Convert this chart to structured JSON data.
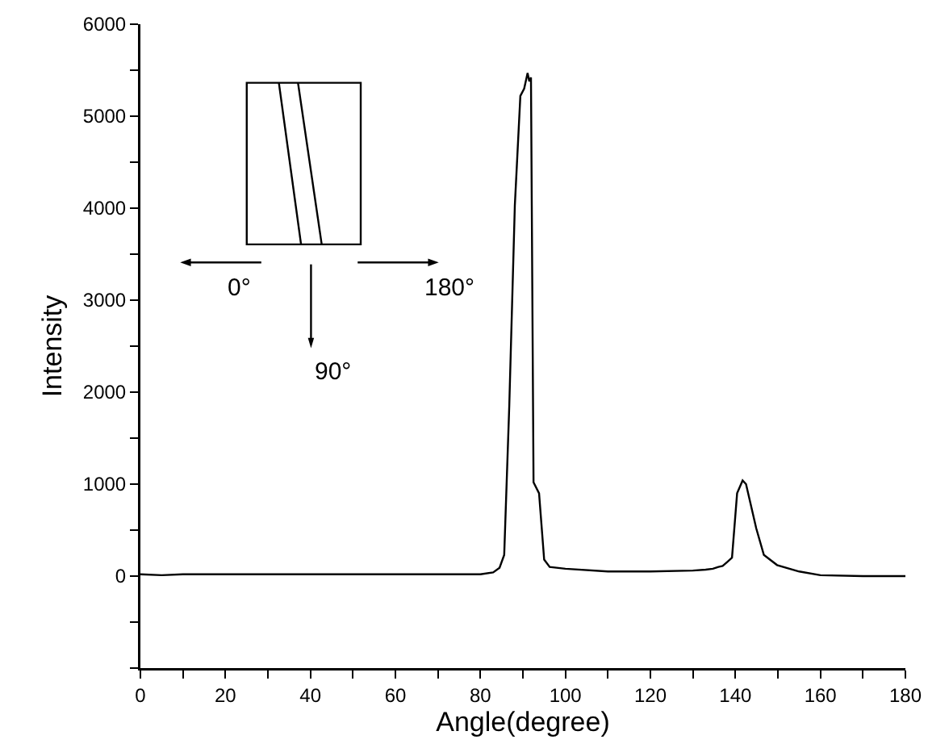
{
  "chart_data": {
    "type": "line",
    "xlabel": "Angle(degree)",
    "ylabel": "Intensity",
    "x": [
      0,
      5,
      10,
      20,
      40,
      60,
      80,
      83,
      84.5,
      85.6,
      86.8,
      88.1,
      89.4,
      90.3,
      91.1,
      91.5,
      91.9,
      92.5,
      93.8,
      95,
      96.3,
      100,
      110,
      120,
      130,
      133,
      134.7,
      136,
      137,
      138,
      139.2,
      140.4,
      141.7,
      142.5,
      143.5,
      144.9,
      146.7,
      149.8,
      155,
      160,
      170,
      180
    ],
    "series": [
      {
        "color": "#000000",
        "values": [
          20,
          10,
          20,
          20,
          20,
          20,
          20,
          40,
          90,
          230,
          1860,
          4030,
          5220,
          5300,
          5470,
          5380,
          5420,
          1020,
          900,
          180,
          100,
          80,
          50,
          50,
          60,
          70,
          80,
          100,
          110,
          150,
          200,
          900,
          1040,
          1000,
          800,
          520,
          230,
          120,
          50,
          10,
          0,
          0
        ]
      }
    ],
    "xlim": [
      0,
      180
    ],
    "ylim": [
      -1000,
      6000
    ],
    "xticks": [
      0,
      {
        "value": 10,
        "label": null
      },
      20,
      {
        "value": 30,
        "label": null
      },
      40,
      {
        "value": 50,
        "label": null
      },
      60,
      {
        "value": 70,
        "label": null
      },
      80,
      {
        "value": 90,
        "label": null
      },
      100,
      {
        "value": 110,
        "label": null
      },
      120,
      {
        "value": 130,
        "label": null
      },
      140,
      {
        "value": 150,
        "label": null
      },
      160,
      {
        "value": 170,
        "label": null
      },
      180
    ],
    "yticks": [
      {
        "value": -1000,
        "label": null
      },
      {
        "value": -500,
        "label": null
      },
      0,
      {
        "value": 500,
        "label": null
      },
      1000,
      {
        "value": 1500,
        "label": null
      },
      2000,
      {
        "value": 2500,
        "label": null
      },
      3000,
      {
        "value": 3500,
        "label": null
      },
      4000,
      {
        "value": 4500,
        "label": null
      },
      5000,
      {
        "value": 5500,
        "label": null
      },
      6000
    ],
    "annotations": [
      "0°",
      "90°",
      "180°"
    ],
    "grid": false
  }
}
